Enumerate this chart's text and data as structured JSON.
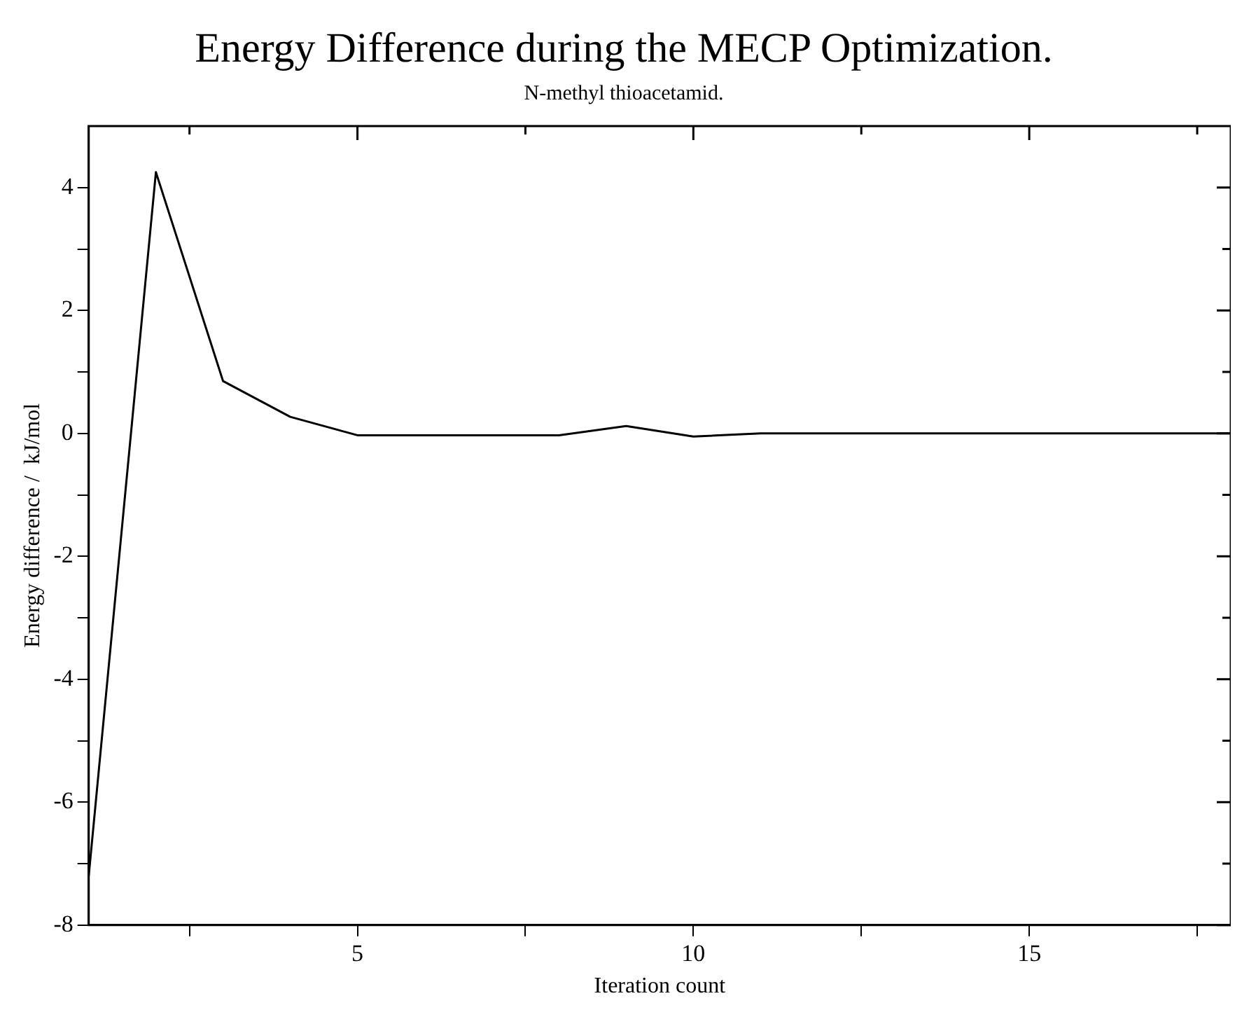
{
  "chart_data": {
    "type": "line",
    "title": "Energy Difference during the MECP Optimization.",
    "subtitle": "N-methyl thioacetamid.",
    "xlabel": "Iteration count",
    "ylabel": "Energy difference /  kJ/mol",
    "x": [
      1,
      2,
      3,
      4,
      5,
      6,
      7,
      8,
      9,
      10,
      11,
      12,
      13,
      14,
      15,
      16,
      17,
      18
    ],
    "series": [
      {
        "color": "#000000",
        "values": [
          -7.2,
          4.25,
          0.85,
          0.27,
          -0.03,
          -0.03,
          -0.03,
          -0.03,
          0.12,
          -0.05,
          0.0,
          0.0,
          0.0,
          0.0,
          0.0,
          0.0,
          0.0,
          0.0
        ]
      }
    ],
    "xlim": [
      1,
      18
    ],
    "xticks": [
      {
        "value": 2.5,
        "label": null
      },
      5,
      {
        "value": 7.5,
        "label": null
      },
      10,
      {
        "value": 12.5,
        "label": null
      },
      15,
      {
        "value": 17.5,
        "label": null
      }
    ],
    "ylim": [
      -8,
      5
    ],
    "yticks": [
      -8,
      {
        "value": -7,
        "label": null
      },
      -6,
      {
        "value": -5,
        "label": null
      },
      -4,
      {
        "value": -3,
        "label": null
      },
      -2,
      {
        "value": -1,
        "label": null
      },
      0,
      {
        "value": 1,
        "label": null
      },
      2,
      {
        "value": 3,
        "label": null
      },
      4
    ],
    "grid": false,
    "legend": false,
    "marker": "none",
    "line_style": "solid"
  }
}
